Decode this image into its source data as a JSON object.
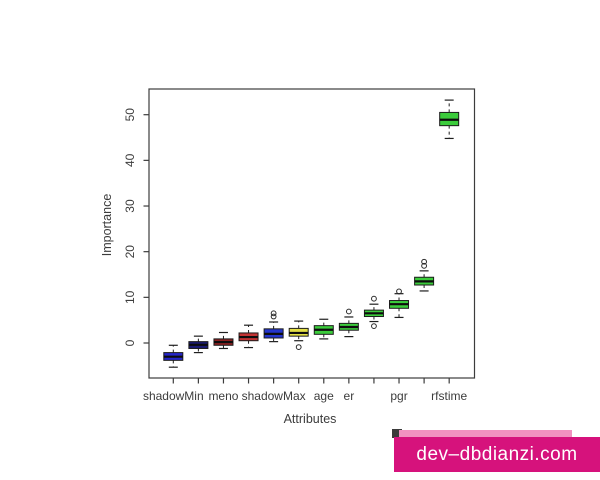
{
  "figure": {
    "background": "#ffffff",
    "frame_color": "#3c3c3c"
  },
  "chart_data": {
    "type": "box",
    "title": "",
    "xlabel": "Attributes",
    "ylabel": "Importance",
    "y_ticks": [
      0,
      10,
      20,
      30,
      40,
      50
    ],
    "ylim": [
      -7.7,
      55.6
    ],
    "grid": "off",
    "legend": "none",
    "whisker_style": "dashed",
    "boxes": [
      {
        "label": "shadowMin",
        "fill": "#2525c8",
        "median": -3.0,
        "q1": -3.8,
        "q3": -2.1,
        "whisker_low": -5.3,
        "whisker_high": -0.5,
        "outliers": []
      },
      {
        "label": "",
        "fill": "#1b1b72",
        "median": -0.4,
        "q1": -1.2,
        "q3": 0.3,
        "whisker_low": -2.1,
        "whisker_high": 1.5,
        "outliers": []
      },
      {
        "label": "meno",
        "fill": "#8b2020",
        "median": 0.2,
        "q1": -0.5,
        "q3": 0.9,
        "whisker_low": -1.2,
        "whisker_high": 2.3,
        "outliers": []
      },
      {
        "label": "",
        "fill": "#c23333",
        "median": 1.3,
        "q1": 0.5,
        "q3": 2.2,
        "whisker_low": -1.0,
        "whisker_high": 3.9,
        "outliers": []
      },
      {
        "label": "shadowMax",
        "fill": "#2334cc",
        "median": 2.0,
        "q1": 1.1,
        "q3": 3.1,
        "whisker_low": 0.3,
        "whisker_high": 4.6,
        "outliers": [
          5.8,
          6.5
        ]
      },
      {
        "label": "",
        "fill": "#e3df45",
        "median": 2.2,
        "q1": 1.5,
        "q3": 3.2,
        "whisker_low": 0.5,
        "whisker_high": 4.8,
        "outliers": [
          -0.9
        ]
      },
      {
        "label": "age",
        "fill": "#3bcc3b",
        "median": 2.9,
        "q1": 1.9,
        "q3": 3.8,
        "whisker_low": 0.9,
        "whisker_high": 5.2,
        "outliers": []
      },
      {
        "label": "er",
        "fill": "#3bcc3b",
        "median": 3.5,
        "q1": 2.8,
        "q3": 4.3,
        "whisker_low": 1.4,
        "whisker_high": 5.7,
        "outliers": [
          6.9
        ]
      },
      {
        "label": "",
        "fill": "#3bcc3b",
        "median": 6.5,
        "q1": 5.8,
        "q3": 7.2,
        "whisker_low": 4.7,
        "whisker_high": 8.5,
        "outliers": [
          9.7,
          3.7
        ]
      },
      {
        "label": "pgr",
        "fill": "#3bcc3b",
        "median": 8.5,
        "q1": 7.6,
        "q3": 9.3,
        "whisker_low": 5.6,
        "whisker_high": 10.8,
        "outliers": [
          11.3
        ]
      },
      {
        "label": "",
        "fill": "#3bcc3b",
        "median": 13.5,
        "q1": 12.7,
        "q3": 14.4,
        "whisker_low": 11.4,
        "whisker_high": 15.8,
        "outliers": [
          16.9,
          17.8
        ]
      },
      {
        "label": "rfstime",
        "fill": "#3bcc3b",
        "median": 48.9,
        "q1": 47.6,
        "q3": 50.5,
        "whisker_low": 44.8,
        "whisker_high": 53.2,
        "outliers": []
      }
    ]
  },
  "watermark": {
    "text": "dev–dbdianzi.com",
    "band_color": "#d6127c",
    "strip_color": "#f291c0",
    "corner_color": "#3b3b3b",
    "text_color": "#ffffff"
  }
}
